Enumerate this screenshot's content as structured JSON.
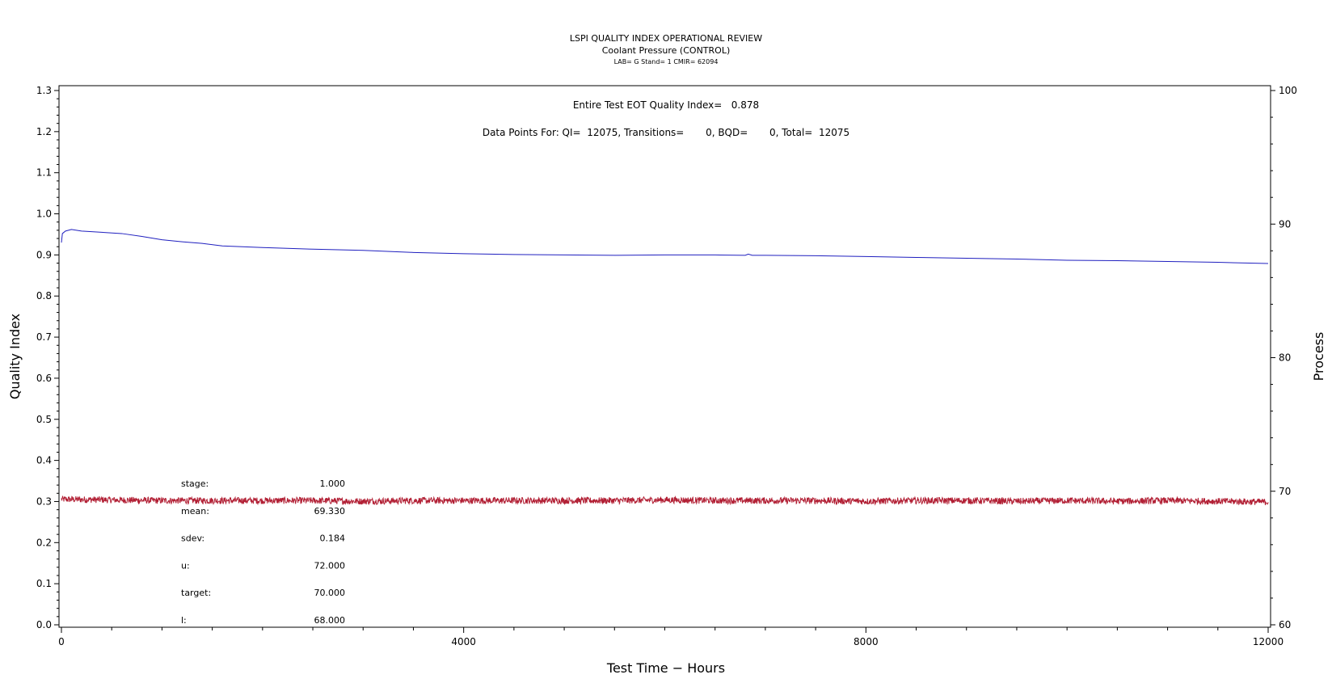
{
  "chart_data": {
    "type": "line",
    "title": "LSPI QUALITY INDEX OPERATIONAL REVIEW",
    "subtitle": "Coolant Pressure (CONTROL)",
    "subtitle2": "LAB= G Stand= 1 CMIR= 62094",
    "annotations": {
      "qi_line": "Entire Test EOT Quality Index=   0.878",
      "points_line": "Data Points For: QI=  12075, Transitions=       0, BQD=       0, Total=  12075"
    },
    "xlabel": "Test Time − Hours",
    "ylabel_left": "Quality Index",
    "ylabel_right": "Process",
    "xlim": [
      0,
      12000
    ],
    "ylim_left": [
      0.0,
      1.3
    ],
    "ylim_right": [
      60,
      100
    ],
    "x_ticks": [
      "0",
      "4000",
      "8000",
      "12000"
    ],
    "y_left_ticks": [
      "0.0",
      "0.1",
      "0.2",
      "0.3",
      "0.4",
      "0.5",
      "0.6",
      "0.7",
      "0.8",
      "0.9",
      "1.0",
      "1.1",
      "1.2",
      "1.3"
    ],
    "y_right_ticks": [
      "60",
      "70",
      "80",
      "90",
      "100"
    ],
    "grid": false,
    "colors": {
      "quality_index": "#1f1fbf",
      "process": "#b22035"
    },
    "series": [
      {
        "axis": "left",
        "x": [
          0,
          10,
          40,
          100,
          200,
          400,
          600,
          800,
          1000,
          1200,
          1400,
          1600,
          2000,
          2500,
          3000,
          3500,
          4000,
          4500,
          5000,
          5500,
          6000,
          6500,
          6800,
          6830,
          6870,
          7000,
          7500,
          8000,
          8500,
          9000,
          9500,
          10000,
          10500,
          11000,
          11500,
          12000
        ],
        "values": [
          0.93,
          0.952,
          0.958,
          0.962,
          0.958,
          0.955,
          0.952,
          0.945,
          0.937,
          0.932,
          0.928,
          0.922,
          0.918,
          0.914,
          0.911,
          0.906,
          0.903,
          0.901,
          0.9,
          0.899,
          0.9,
          0.9,
          0.899,
          0.902,
          0.899,
          0.899,
          0.898,
          0.896,
          0.894,
          0.892,
          0.89,
          0.887,
          0.886,
          0.884,
          0.882,
          0.879
        ]
      },
      {
        "axis": "right",
        "x": [
          0,
          500,
          1000,
          1500,
          2000,
          2500,
          3000,
          3500,
          4000,
          4500,
          5000,
          5500,
          6000,
          6500,
          7000,
          7500,
          8000,
          8500,
          9000,
          9500,
          10000,
          10500,
          11000,
          11500,
          12000
        ],
        "values": [
          69.4,
          69.35,
          69.3,
          69.3,
          69.3,
          69.3,
          69.25,
          69.3,
          69.3,
          69.3,
          69.3,
          69.3,
          69.35,
          69.3,
          69.3,
          69.3,
          69.25,
          69.3,
          69.3,
          69.25,
          69.3,
          69.25,
          69.3,
          69.25,
          69.2
        ]
      }
    ],
    "stats": [
      {
        "label": "stage:",
        "value": "1.000"
      },
      {
        "label": "mean:",
        "value": "69.330"
      },
      {
        "label": "sdev:",
        "value": "0.184"
      },
      {
        "label": "u:",
        "value": "72.000"
      },
      {
        "label": "target:",
        "value": "70.000"
      },
      {
        "label": "l:",
        "value": "68.000"
      }
    ]
  }
}
